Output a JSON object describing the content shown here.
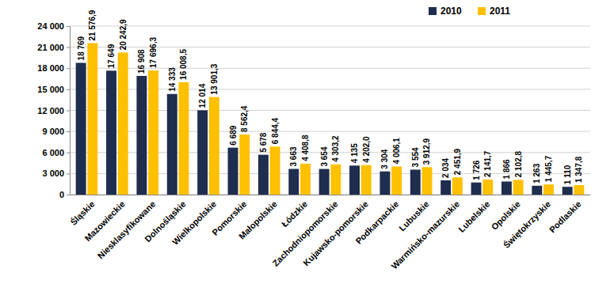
{
  "chart_data": {
    "type": "bar",
    "categories": [
      "Śląskie",
      "Mazowieckie",
      "Niesklasyfikowane",
      "Dolnośląskie",
      "Wielkopolskie",
      "Pomorskie",
      "Małopolskie",
      "Łódzkie",
      "Zachodniopomorskie",
      "Kujawsko-pomorskie",
      "Podkarpackie",
      "Lubuskie",
      "Warmińsko-mazurskie",
      "Lubelskie",
      "Opolskie",
      "Świętokrzyskie",
      "Podlaskie"
    ],
    "series": [
      {
        "name": "2010",
        "color": "#1f2d4e",
        "values": [
          18769,
          17649,
          16908,
          14333,
          12014,
          6689,
          5678,
          3663,
          3654,
          4135,
          3304,
          3554,
          2034,
          1726,
          1866,
          1263,
          1110
        ],
        "value_labels": [
          "18 769",
          "17 649",
          "16 908",
          "14 333",
          "12 014",
          "6 689",
          "5 678",
          "3 663",
          "3 654",
          "4 135",
          "3 304",
          "3 554",
          "2 034",
          "1 726",
          "1 866",
          "1 263",
          "1 110"
        ]
      },
      {
        "name": "2011",
        "color": "#ffc000",
        "values": [
          21576.9,
          20242.9,
          17696.3,
          16008.5,
          13901.3,
          8562.4,
          6844.4,
          4408.8,
          4303.2,
          4202.0,
          4006.1,
          3912.9,
          2451.9,
          2141.7,
          2102.8,
          1445.7,
          1347.8
        ],
        "value_labels": [
          "21 576,9",
          "20 242,9",
          "17 696,3",
          "16 008,5",
          "13 901,3",
          "8 562,4",
          "6 844,4",
          "4 408,8",
          "4 303,2",
          "4 202,0",
          "4 006,1",
          "3 912,9",
          "2 451,9",
          "2 141,7",
          "2 102,8",
          "1 445,7",
          "1 347,8"
        ]
      }
    ],
    "ylim": [
      0,
      24000
    ],
    "yticks": [
      0,
      {
        "value": 3000,
        "label": "3 000"
      },
      {
        "value": 6000,
        "label": "6 000"
      },
      {
        "value": 9000,
        "label": "9 000"
      },
      {
        "value": 12000,
        "label": "12 000"
      },
      {
        "value": 15000,
        "label": "15 000"
      },
      {
        "value": 18000,
        "label": "18 000"
      },
      {
        "value": 21000,
        "label": "21 000"
      },
      {
        "value": 24000,
        "label": "24 000"
      }
    ],
    "grid": true,
    "legend": "top-right",
    "data_labels": true
  }
}
